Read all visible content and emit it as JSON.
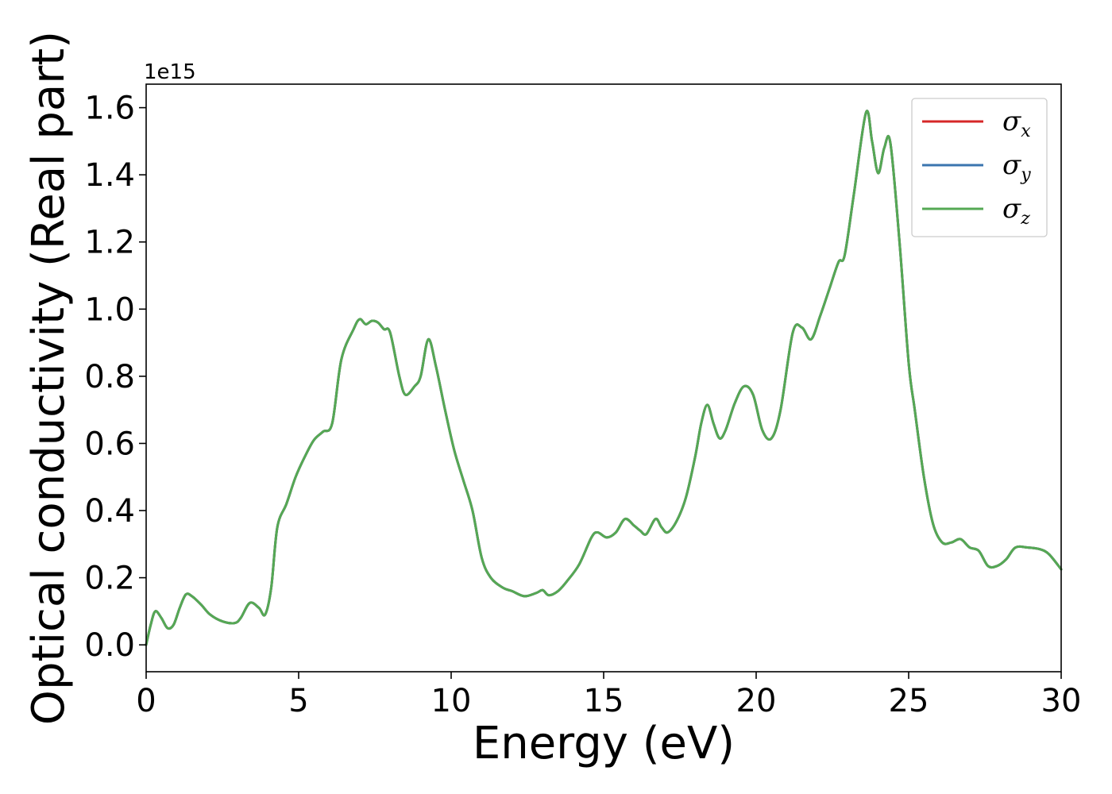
{
  "chart_data": {
    "type": "line",
    "xlabel": "Energy (eV)",
    "ylabel": "Optical conductivity (Real part)",
    "y_offset_text": "1e15",
    "xlim": [
      0,
      30
    ],
    "ylim": [
      -0.08,
      1.67
    ],
    "y_scale_factor": 1000000000000000.0,
    "grid": false,
    "legend_position": "top-right",
    "x_ticks": [
      0,
      5,
      10,
      15,
      20,
      25,
      30
    ],
    "x_tick_labels": [
      "0",
      "5",
      "10",
      "15",
      "20",
      "25",
      "30"
    ],
    "y_ticks": [
      0.0,
      0.2,
      0.4,
      0.6,
      0.8,
      1.0,
      1.2,
      1.4,
      1.6
    ],
    "y_tick_labels": [
      "0.0",
      "0.2",
      "0.4",
      "0.6",
      "0.8",
      "1.0",
      "1.2",
      "1.4",
      "1.6"
    ],
    "series": [
      {
        "name": "σ_x",
        "legend_symbol": "σ",
        "legend_sub": "x",
        "color": "#d62728",
        "values_ref": "shared"
      },
      {
        "name": "σ_y",
        "legend_symbol": "σ",
        "legend_sub": "y",
        "color": "#3b75af",
        "values_ref": "shared"
      },
      {
        "name": "σ_z",
        "legend_symbol": "σ",
        "legend_sub": "z",
        "color": "#55a854",
        "values_ref": "shared"
      }
    ],
    "shared_points": [
      [
        0.0,
        0.0
      ],
      [
        0.15,
        0.06
      ],
      [
        0.3,
        0.1
      ],
      [
        0.5,
        0.08
      ],
      [
        0.7,
        0.05
      ],
      [
        0.9,
        0.06
      ],
      [
        1.1,
        0.11
      ],
      [
        1.3,
        0.15
      ],
      [
        1.5,
        0.145
      ],
      [
        1.8,
        0.12
      ],
      [
        2.1,
        0.09
      ],
      [
        2.5,
        0.07
      ],
      [
        2.9,
        0.065
      ],
      [
        3.1,
        0.08
      ],
      [
        3.4,
        0.125
      ],
      [
        3.7,
        0.11
      ],
      [
        3.9,
        0.09
      ],
      [
        4.1,
        0.17
      ],
      [
        4.3,
        0.35
      ],
      [
        4.6,
        0.42
      ],
      [
        4.9,
        0.5
      ],
      [
        5.2,
        0.56
      ],
      [
        5.5,
        0.61
      ],
      [
        5.8,
        0.635
      ],
      [
        6.1,
        0.66
      ],
      [
        6.4,
        0.85
      ],
      [
        6.8,
        0.94
      ],
      [
        7.0,
        0.97
      ],
      [
        7.2,
        0.955
      ],
      [
        7.4,
        0.965
      ],
      [
        7.6,
        0.96
      ],
      [
        7.8,
        0.94
      ],
      [
        8.0,
        0.93
      ],
      [
        8.3,
        0.8
      ],
      [
        8.5,
        0.745
      ],
      [
        8.8,
        0.77
      ],
      [
        9.0,
        0.8
      ],
      [
        9.25,
        0.91
      ],
      [
        9.5,
        0.83
      ],
      [
        9.8,
        0.7
      ],
      [
        10.1,
        0.58
      ],
      [
        10.4,
        0.49
      ],
      [
        10.7,
        0.4
      ],
      [
        11.0,
        0.26
      ],
      [
        11.3,
        0.2
      ],
      [
        11.7,
        0.17
      ],
      [
        12.0,
        0.16
      ],
      [
        12.4,
        0.145
      ],
      [
        12.8,
        0.155
      ],
      [
        13.0,
        0.163
      ],
      [
        13.2,
        0.148
      ],
      [
        13.5,
        0.16
      ],
      [
        13.8,
        0.19
      ],
      [
        14.2,
        0.24
      ],
      [
        14.6,
        0.32
      ],
      [
        14.8,
        0.335
      ],
      [
        15.1,
        0.32
      ],
      [
        15.4,
        0.335
      ],
      [
        15.7,
        0.375
      ],
      [
        16.0,
        0.355
      ],
      [
        16.2,
        0.34
      ],
      [
        16.4,
        0.33
      ],
      [
        16.7,
        0.375
      ],
      [
        16.9,
        0.35
      ],
      [
        17.1,
        0.335
      ],
      [
        17.4,
        0.37
      ],
      [
        17.7,
        0.44
      ],
      [
        18.0,
        0.56
      ],
      [
        18.2,
        0.66
      ],
      [
        18.4,
        0.715
      ],
      [
        18.6,
        0.66
      ],
      [
        18.8,
        0.615
      ],
      [
        19.0,
        0.64
      ],
      [
        19.3,
        0.72
      ],
      [
        19.6,
        0.77
      ],
      [
        19.9,
        0.745
      ],
      [
        20.2,
        0.64
      ],
      [
        20.5,
        0.615
      ],
      [
        20.8,
        0.7
      ],
      [
        21.2,
        0.93
      ],
      [
        21.5,
        0.945
      ],
      [
        21.8,
        0.91
      ],
      [
        22.1,
        0.98
      ],
      [
        22.4,
        1.06
      ],
      [
        22.7,
        1.14
      ],
      [
        22.9,
        1.16
      ],
      [
        23.2,
        1.34
      ],
      [
        23.6,
        1.585
      ],
      [
        23.8,
        1.5
      ],
      [
        24.0,
        1.405
      ],
      [
        24.2,
        1.48
      ],
      [
        24.4,
        1.495
      ],
      [
        24.7,
        1.2
      ],
      [
        25.0,
        0.84
      ],
      [
        25.2,
        0.7
      ],
      [
        25.5,
        0.5
      ],
      [
        25.8,
        0.36
      ],
      [
        26.1,
        0.305
      ],
      [
        26.4,
        0.305
      ],
      [
        26.7,
        0.315
      ],
      [
        27.0,
        0.29
      ],
      [
        27.3,
        0.28
      ],
      [
        27.6,
        0.235
      ],
      [
        27.9,
        0.235
      ],
      [
        28.2,
        0.255
      ],
      [
        28.5,
        0.29
      ],
      [
        28.9,
        0.29
      ],
      [
        29.3,
        0.285
      ],
      [
        29.6,
        0.27
      ],
      [
        30.0,
        0.225
      ]
    ]
  }
}
